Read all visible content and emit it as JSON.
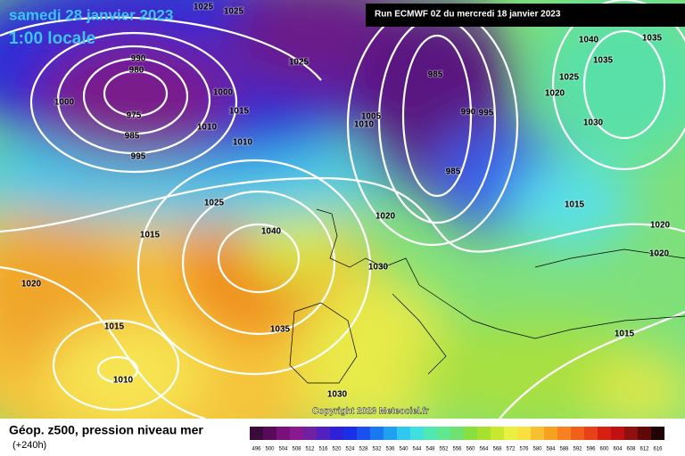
{
  "header": {
    "date": "samedi 28 janvier 2023",
    "time": "1:00 locale",
    "run": "Run ECMWF 0Z du mercredi 18 janvier 2023"
  },
  "copyright": "Copyright 2023 Meteociel.fr",
  "footer": {
    "title": "Géop. z500, pression niveau mer",
    "lead": "(+240h)"
  },
  "isobar_labels": [
    1025,
    1025,
    990,
    980,
    1000,
    1000,
    975,
    1015,
    985,
    1010,
    1010,
    995,
    1025,
    985,
    990,
    995,
    1005,
    1010,
    985,
    1040,
    1035,
    1035,
    1025,
    1020,
    1030,
    1025,
    1015,
    1040,
    1020,
    1030,
    1015,
    1020,
    1020,
    1020,
    1015,
    1035,
    1015,
    1010,
    1030
  ],
  "legend": {
    "ticks": [
      496,
      500,
      504,
      508,
      512,
      516,
      520,
      524,
      528,
      532,
      536,
      540,
      544,
      548,
      552,
      556,
      560,
      564,
      568,
      572,
      576,
      580,
      584,
      588,
      592,
      596,
      600,
      604,
      608,
      612,
      616
    ]
  }
}
